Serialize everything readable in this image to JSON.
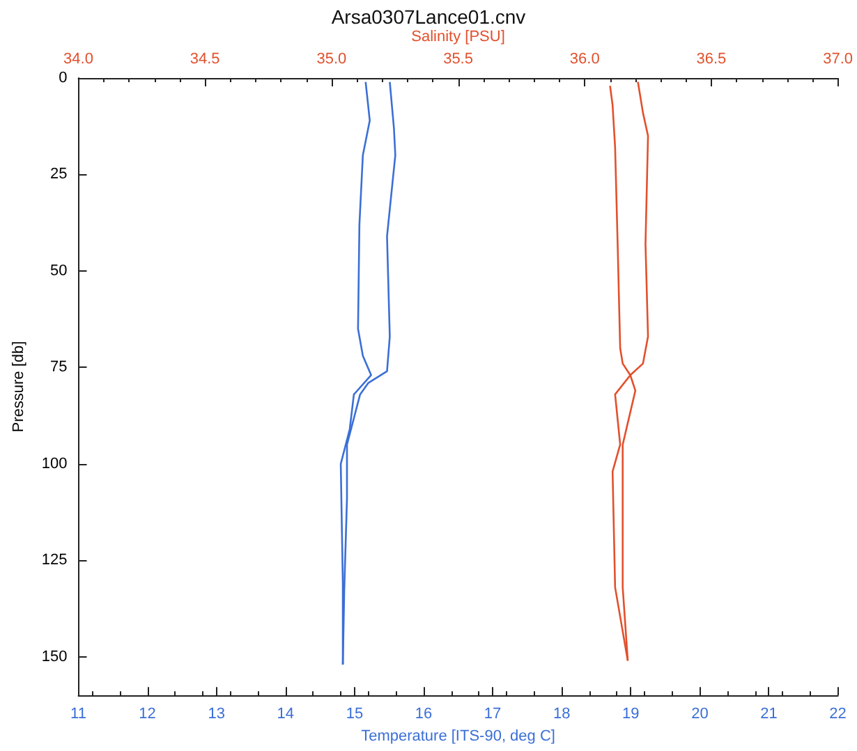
{
  "chart_data": {
    "type": "line",
    "title": "Arsa0307Lance01.cnv",
    "xlabel": "Temperature [ITS-90, deg C]",
    "x2label": "Salinity [PSU]",
    "ylabel": "Pressure [db]",
    "xlim": [
      11,
      22
    ],
    "xticks": [
      11,
      12,
      13,
      14,
      15,
      16,
      17,
      18,
      19,
      20,
      21,
      22
    ],
    "x2lim": [
      34,
      37
    ],
    "x2ticks": [
      {
        "value": 34,
        "label": "34.0"
      },
      {
        "value": 34.5,
        "label": "34.5"
      },
      {
        "value": 35,
        "label": "35.0"
      },
      {
        "value": 35.5,
        "label": "35.5"
      },
      {
        "value": 36,
        "label": "36.0"
      },
      {
        "value": 36.5,
        "label": "36.5"
      },
      {
        "value": 37,
        "label": "37.0"
      }
    ],
    "ylim": [
      160,
      0
    ],
    "yticks": [
      0,
      25,
      50,
      75,
      100,
      125,
      150
    ],
    "grid": false,
    "marker": "none",
    "line_style": "solid",
    "series": [
      {
        "color": "#3b6fd6",
        "x": [
          15.16,
          15.22,
          15.12,
          15.07,
          15.05,
          15.12,
          15.24,
          14.99,
          14.93,
          14.8,
          14.83,
          14.83
        ],
        "values": [
          1,
          11,
          20,
          38,
          65,
          72,
          77,
          82,
          91,
          100,
          131,
          152
        ]
      },
      {
        "color": "#3b6fd6",
        "x": [
          15.51,
          15.57,
          15.59,
          15.47,
          15.51,
          15.47,
          15.2,
          15.08,
          14.89,
          14.89,
          14.85,
          14.83
        ],
        "values": [
          1,
          13,
          20,
          41,
          67,
          76,
          79,
          82,
          95,
          109,
          133,
          152
        ]
      },
      {
        "color": "#e2502c",
        "axis": "x2",
        "x": [
          36.1,
          36.11,
          36.12,
          36.13,
          36.14,
          36.15,
          36.18,
          36.2,
          36.15,
          36.15,
          36.15,
          36.17
        ],
        "values": [
          2,
          7,
          18,
          43,
          70,
          74,
          77,
          81,
          95,
          103,
          132,
          151
        ]
      },
      {
        "color": "#e2502c",
        "axis": "x2",
        "x": [
          36.21,
          36.23,
          36.25,
          36.24,
          36.25,
          36.23,
          36.18,
          36.12,
          36.14,
          36.11,
          36.12,
          36.17
        ],
        "values": [
          1,
          9,
          15,
          43,
          67,
          74,
          77,
          82,
          95,
          102,
          132,
          151
        ]
      }
    ]
  }
}
